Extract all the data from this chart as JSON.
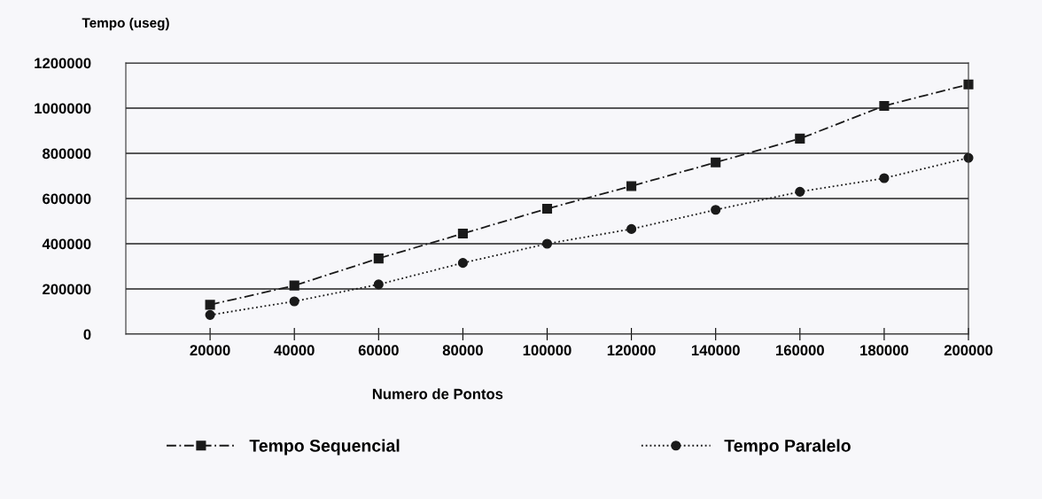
{
  "chart_data": {
    "type": "line",
    "ylabel": "Tempo (useg)",
    "xlabel": "Numero de Pontos",
    "x": [
      20000,
      40000,
      60000,
      80000,
      100000,
      120000,
      140000,
      160000,
      180000,
      200000
    ],
    "series": [
      {
        "name": "Tempo Sequencial",
        "color": "#1a1a1a",
        "marker": "square",
        "line_style": "dashed",
        "values": [
          130000,
          215000,
          335000,
          445000,
          555000,
          655000,
          760000,
          865000,
          1010000,
          1105000
        ]
      },
      {
        "name": "Tempo Paralelo",
        "color": "#1a1a1a",
        "marker": "circle",
        "line_style": "dotted",
        "values": [
          85000,
          145000,
          220000,
          315000,
          400000,
          465000,
          550000,
          630000,
          690000,
          780000
        ]
      }
    ],
    "xlim": [
      0,
      200000
    ],
    "xticks": [
      20000,
      40000,
      60000,
      80000,
      100000,
      120000,
      140000,
      160000,
      180000,
      200000
    ],
    "ylim": [
      0,
      1200000
    ],
    "yticks": [
      0,
      200000,
      400000,
      600000,
      800000,
      1000000,
      1200000
    ],
    "grid": "y",
    "legend": "bottom"
  }
}
